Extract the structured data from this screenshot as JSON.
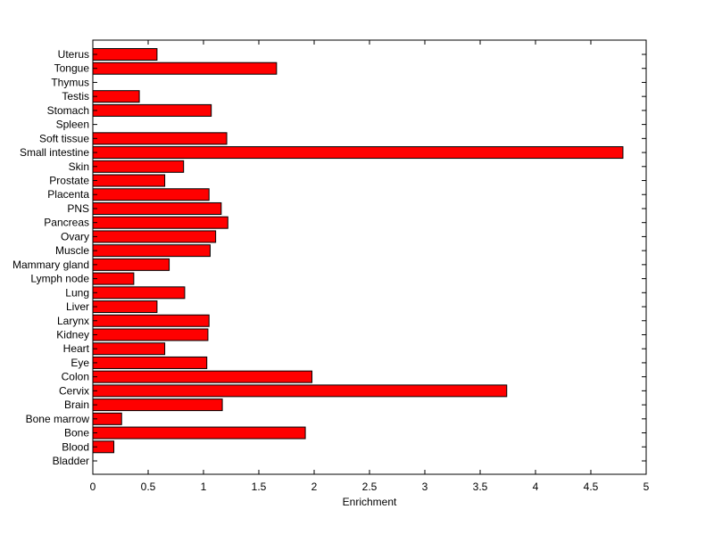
{
  "chart_data": {
    "type": "bar",
    "orientation": "horizontal",
    "xlabel": "Enrichment",
    "ylabel": "",
    "title": "",
    "xlim": [
      0,
      5
    ],
    "x_ticks": [
      "0",
      "0.5",
      "1",
      "1.5",
      "2",
      "2.5",
      "3",
      "3.5",
      "4",
      "4.5",
      "5"
    ],
    "grid": false,
    "bar_color": "#ff0000",
    "bar_edge_color": "#000000",
    "categories": [
      "Bladder",
      "Blood",
      "Bone",
      "Bone marrow",
      "Brain",
      "Cervix",
      "Colon",
      "Eye",
      "Heart",
      "Kidney",
      "Larynx",
      "Liver",
      "Lung",
      "Lymph node",
      "Mammary gland",
      "Muscle",
      "Ovary",
      "Pancreas",
      "PNS",
      "Placenta",
      "Prostate",
      "Skin",
      "Small intestine",
      "Soft tissue",
      "Spleen",
      "Stomach",
      "Testis",
      "Thymus",
      "Tongue",
      "Uterus"
    ],
    "values": [
      0,
      0.19,
      1.92,
      0.26,
      1.17,
      3.74,
      1.98,
      1.03,
      0.65,
      1.04,
      1.05,
      0.58,
      0.83,
      0.37,
      0.69,
      1.06,
      1.11,
      1.22,
      1.16,
      1.05,
      0.65,
      0.82,
      4.79,
      1.21,
      0,
      1.07,
      0.42,
      0,
      1.66,
      0.58
    ]
  }
}
